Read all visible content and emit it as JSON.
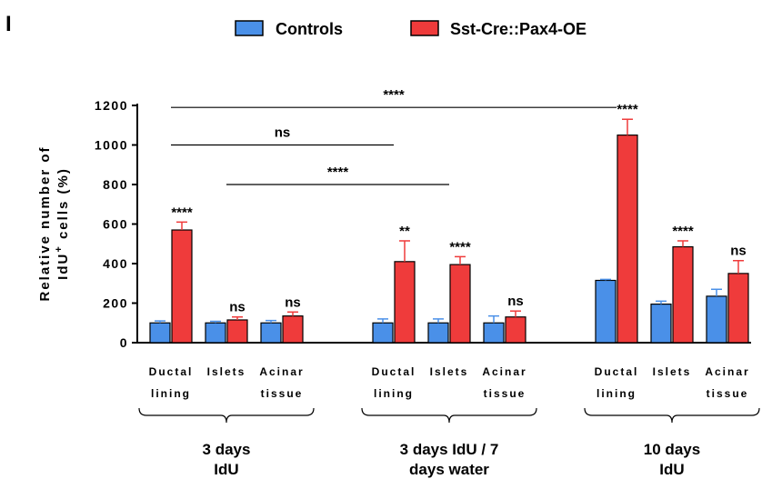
{
  "panel_label": "I",
  "legend": [
    {
      "name": "Controls",
      "color": "#4a90e8"
    },
    {
      "name": "Sst-Cre::Pax4-OE",
      "color": "#ef3b3b"
    }
  ],
  "chart_data": {
    "type": "bar",
    "ylabel_line1": "Relative number of",
    "ylabel_line2_pre": "IdU",
    "ylabel_line2_sup": "+",
    "ylabel_line2_post": " cells (%)",
    "ylim": [
      0,
      1200
    ],
    "yticks": [
      0,
      200,
      400,
      600,
      800,
      1000,
      1200
    ],
    "grid": false,
    "legend_position": "top",
    "groups": [
      {
        "label_line1": "3 days",
        "label_line2": "IdU",
        "categories": [
          {
            "line1": "Ductal",
            "line2": "lining",
            "control": 100,
            "control_err": 10,
            "pax4": 570,
            "pax4_err": 40,
            "sig": "****"
          },
          {
            "line1": "Islets",
            "line2": "",
            "control": 100,
            "control_err": 8,
            "pax4": 115,
            "pax4_err": 15,
            "sig": "ns"
          },
          {
            "line1": "Acinar",
            "line2": "tissue",
            "control": 100,
            "control_err": 12,
            "pax4": 135,
            "pax4_err": 20,
            "sig": "ns"
          }
        ]
      },
      {
        "label_line1": "3 days IdU / 7",
        "label_line2": "days water",
        "categories": [
          {
            "line1": "Ductal",
            "line2": "lining",
            "control": 100,
            "control_err": 20,
            "pax4": 410,
            "pax4_err": 105,
            "sig": "**"
          },
          {
            "line1": "Islets",
            "line2": "",
            "control": 100,
            "control_err": 20,
            "pax4": 395,
            "pax4_err": 40,
            "sig": "****"
          },
          {
            "line1": "Acinar",
            "line2": "tissue",
            "control": 100,
            "control_err": 35,
            "pax4": 130,
            "pax4_err": 30,
            "sig": "ns"
          }
        ]
      },
      {
        "label_line1": "10 days",
        "label_line2": "IdU",
        "categories": [
          {
            "line1": "Ductal",
            "line2": "lining",
            "control": 315,
            "control_err": 5,
            "pax4": 1050,
            "pax4_err": 80,
            "sig": "****"
          },
          {
            "line1": "Islets",
            "line2": "",
            "control": 195,
            "control_err": 15,
            "pax4": 485,
            "pax4_err": 30,
            "sig": "****"
          },
          {
            "line1": "Acinar",
            "line2": "tissue",
            "control": 235,
            "control_err": 35,
            "pax4": 350,
            "pax4_err": 65,
            "sig": "ns"
          }
        ]
      }
    ],
    "comparisons": [
      {
        "from": [
          0,
          0
        ],
        "to": [
          2,
          0
        ],
        "y": 1190,
        "label": "****"
      },
      {
        "from": [
          0,
          0
        ],
        "to": [
          1,
          0
        ],
        "y": 1000,
        "label": "ns"
      },
      {
        "from": [
          0,
          1
        ],
        "to": [
          1,
          1
        ],
        "y": 800,
        "label": "****"
      }
    ]
  }
}
